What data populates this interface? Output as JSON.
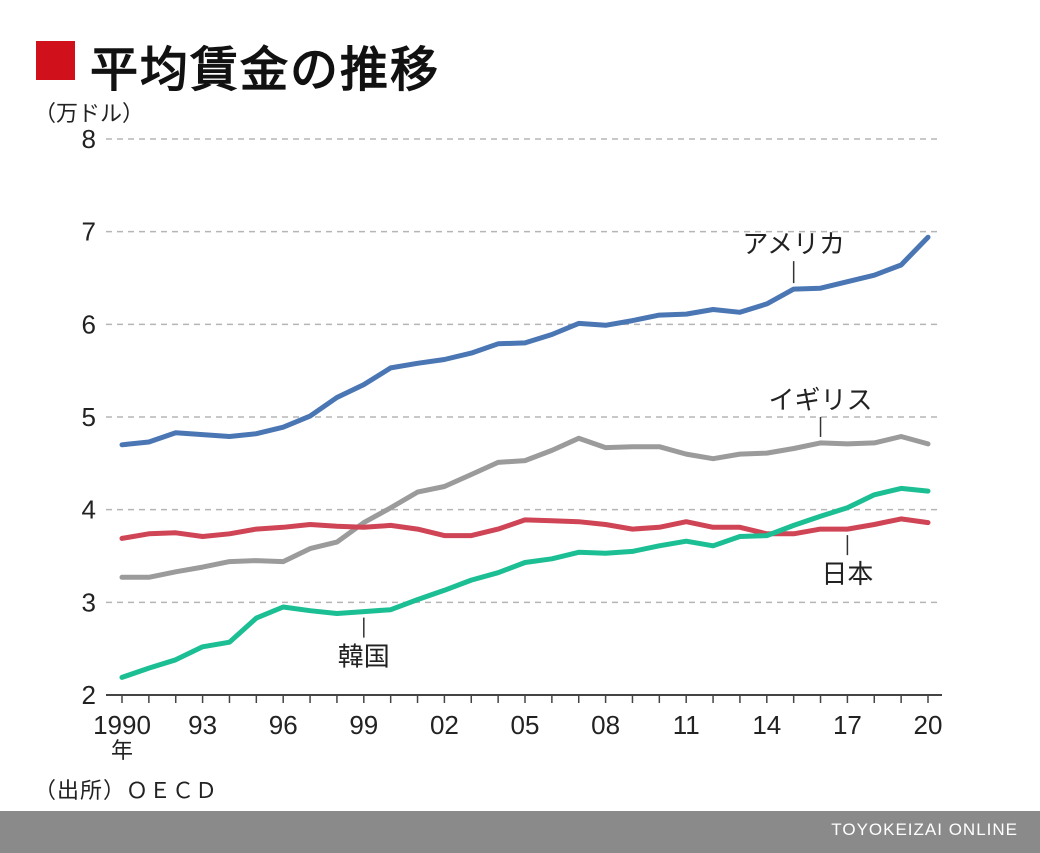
{
  "header": {
    "title": "平均賃金の推移",
    "unit": "（万ドル）",
    "accent_color": "#d0111b"
  },
  "source": "（出所）ＯＥＣＤ",
  "footer": {
    "brand": "TOYOKEIZAI ONLINE",
    "background": "#8a8a8a"
  },
  "chart_data": {
    "type": "line",
    "ylim": [
      2,
      8
    ],
    "yticks": [
      2,
      3,
      4,
      5,
      6,
      7,
      8
    ],
    "x": [
      1990,
      1991,
      1992,
      1993,
      1994,
      1995,
      1996,
      1997,
      1998,
      1999,
      2000,
      2001,
      2002,
      2003,
      2004,
      2005,
      2006,
      2007,
      2008,
      2009,
      2010,
      2011,
      2012,
      2013,
      2014,
      2015,
      2016,
      2017,
      2018,
      2019,
      2020
    ],
    "xticks": [
      {
        "value": 1990,
        "label": "1990"
      },
      {
        "value": 1993,
        "label": "93"
      },
      {
        "value": 1996,
        "label": "96"
      },
      {
        "value": 1999,
        "label": "99"
      },
      {
        "value": 2002,
        "label": "02"
      },
      {
        "value": 2005,
        "label": "05"
      },
      {
        "value": 2008,
        "label": "08"
      },
      {
        "value": 2011,
        "label": "11"
      },
      {
        "value": 2014,
        "label": "14"
      },
      {
        "value": 2017,
        "label": "17"
      },
      {
        "value": 2020,
        "label": "20"
      }
    ],
    "x_suffix": "年",
    "grid": true,
    "series": [
      {
        "name": "アメリカ",
        "color": "#4a76b4",
        "values": [
          4.7,
          4.73,
          4.83,
          4.81,
          4.79,
          4.82,
          4.89,
          5.01,
          5.21,
          5.35,
          5.53,
          5.58,
          5.62,
          5.69,
          5.79,
          5.8,
          5.89,
          6.01,
          5.99,
          6.04,
          6.1,
          6.11,
          6.16,
          6.13,
          6.22,
          6.38,
          6.39,
          6.46,
          6.53,
          6.64,
          6.94
        ],
        "label_anchor_year": 2015
      },
      {
        "name": "イギリス",
        "color": "#9b9b9b",
        "values": [
          3.27,
          3.27,
          3.33,
          3.38,
          3.44,
          3.45,
          3.44,
          3.58,
          3.65,
          3.86,
          4.02,
          4.19,
          4.25,
          4.38,
          4.51,
          4.53,
          4.64,
          4.77,
          4.67,
          4.68,
          4.68,
          4.6,
          4.55,
          4.6,
          4.61,
          4.66,
          4.72,
          4.71,
          4.72,
          4.79,
          4.71
        ],
        "label_anchor_year": 2016
      },
      {
        "name": "日本",
        "color": "#cf4556",
        "values": [
          3.69,
          3.74,
          3.75,
          3.71,
          3.74,
          3.79,
          3.81,
          3.84,
          3.82,
          3.81,
          3.83,
          3.79,
          3.72,
          3.72,
          3.79,
          3.89,
          3.88,
          3.87,
          3.84,
          3.79,
          3.81,
          3.87,
          3.81,
          3.81,
          3.74,
          3.74,
          3.79,
          3.79,
          3.84,
          3.9,
          3.86
        ],
        "label_anchor_year": 2017
      },
      {
        "name": "韓国",
        "color": "#1bbf93",
        "values": [
          2.19,
          2.29,
          2.38,
          2.52,
          2.57,
          2.83,
          2.95,
          2.91,
          2.88,
          2.9,
          2.92,
          3.03,
          3.13,
          3.24,
          3.32,
          3.43,
          3.47,
          3.54,
          3.53,
          3.55,
          3.61,
          3.66,
          3.61,
          3.71,
          3.72,
          3.83,
          3.93,
          4.02,
          4.16,
          4.23,
          4.2
        ],
        "label_anchor_year": 1999
      }
    ]
  }
}
